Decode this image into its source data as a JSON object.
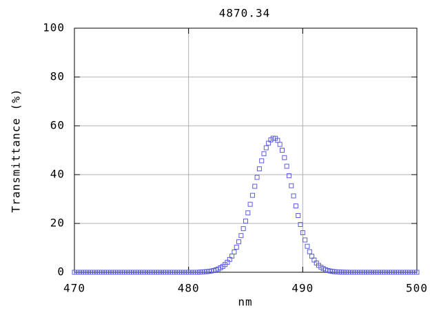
{
  "chart_data": {
    "type": "scatter",
    "title": "4870.34",
    "xlabel": "nm",
    "ylabel": "Transmittance (%)",
    "xlim": [
      470,
      500
    ],
    "ylim": [
      0,
      100
    ],
    "xticks": [
      470,
      480,
      490,
      500
    ],
    "yticks": [
      0,
      20,
      40,
      60,
      80,
      100
    ],
    "grid": true,
    "series": [
      {
        "color": "#5a5ae0",
        "x": [
          470,
          470.2,
          470.4,
          470.6,
          470.8,
          471,
          471.2,
          471.4,
          471.6,
          471.8,
          472,
          472.2,
          472.4,
          472.6,
          472.8,
          473,
          473.2,
          473.4,
          473.6,
          473.8,
          474,
          474.2,
          474.4,
          474.6,
          474.8,
          475,
          475.2,
          475.4,
          475.6,
          475.8,
          476,
          476.2,
          476.4,
          476.6,
          476.8,
          477,
          477.2,
          477.4,
          477.6,
          477.8,
          478,
          478.2,
          478.4,
          478.6,
          478.8,
          479,
          479.2,
          479.4,
          479.6,
          479.8,
          480,
          480.2,
          480.4,
          480.6,
          480.8,
          481,
          481.2,
          481.4,
          481.6,
          481.8,
          482,
          482.2,
          482.4,
          482.6,
          482.8,
          483,
          483.2,
          483.4,
          483.6,
          483.8,
          484,
          484.2,
          484.4,
          484.6,
          484.8,
          485,
          485.2,
          485.4,
          485.6,
          485.8,
          486,
          486.2,
          486.4,
          486.6,
          486.8,
          487,
          487.2,
          487.4,
          487.6,
          487.8,
          488,
          488.2,
          488.4,
          488.6,
          488.8,
          489,
          489.2,
          489.4,
          489.6,
          489.8,
          490,
          490.2,
          490.4,
          490.6,
          490.8,
          491,
          491.2,
          491.4,
          491.6,
          491.8,
          492,
          492.2,
          492.4,
          492.6,
          492.8,
          493,
          493.2,
          493.4,
          493.6,
          493.8,
          494,
          494.2,
          494.4,
          494.6,
          494.8,
          495,
          495.2,
          495.4,
          495.6,
          495.8,
          496,
          496.2,
          496.4,
          496.6,
          496.8,
          497,
          497.2,
          497.4,
          497.6,
          497.8,
          498,
          498.2,
          498.4,
          498.6,
          498.8,
          499,
          499.2,
          499.4,
          499.6,
          499.8,
          500
        ],
        "values": [
          0,
          0,
          0,
          0,
          0,
          0,
          0,
          0,
          0,
          0,
          0,
          0,
          0,
          0,
          0,
          0,
          0,
          0,
          0,
          0,
          0,
          0,
          0,
          0,
          0,
          0,
          0,
          0,
          0,
          0,
          0,
          0,
          0,
          0,
          0,
          0,
          0,
          0,
          0,
          0,
          0,
          0,
          0,
          0,
          0,
          0,
          0,
          0,
          0,
          0,
          0,
          0,
          0,
          0,
          0,
          0.08,
          0.12,
          0.18,
          0.26,
          0.37,
          0.52,
          0.72,
          0.99,
          1.35,
          1.82,
          2.42,
          3.17,
          4.11,
          5.26,
          6.65,
          8.31,
          10.24,
          12.48,
          15.02,
          17.86,
          20.96,
          24.31,
          27.84,
          31.51,
          35.21,
          38.87,
          42.37,
          45.66,
          48.54,
          50.99,
          52.92,
          54.24,
          54.92,
          54.89,
          54.04,
          52.38,
          49.98,
          46.96,
          43.42,
          39.54,
          35.44,
          31.28,
          27.17,
          23.24,
          19.57,
          16.21,
          13.24,
          10.64,
          8.42,
          6.55,
          5.02,
          3.78,
          2.81,
          2.06,
          1.49,
          1.05,
          0.74,
          0.51,
          0.34,
          0.23,
          0.15,
          0.1,
          0.06,
          0.04,
          0.02,
          0.01,
          0,
          0,
          0,
          0,
          0,
          0,
          0,
          0,
          0,
          0,
          0,
          0,
          0,
          0,
          0,
          0,
          0,
          0,
          0,
          0,
          0,
          0,
          0,
          0,
          0,
          0,
          0,
          0,
          0,
          0
        ]
      }
    ]
  }
}
